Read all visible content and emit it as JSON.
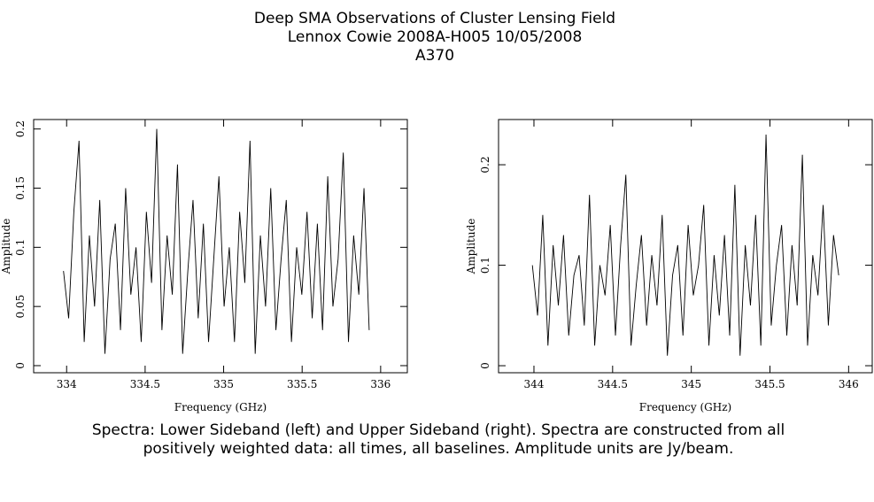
{
  "header": {
    "title": "Deep SMA Observations of Cluster Lensing Field",
    "line2": "Lennox Cowie   2008A-H005   10/05/2008",
    "line3": "A370"
  },
  "caption": {
    "line1": "Spectra: Lower Sideband (left) and Upper Sideband (right).  Spectra are constructed from all",
    "line2": "positively weighted data: all times, all baselines.  Amplitude units are Jy/beam."
  },
  "chart_data": [
    {
      "type": "line",
      "x_label": "Frequency (GHz)",
      "y_label": "Amplitude",
      "color": "#000000",
      "xlim": [
        333.79,
        336.17
      ],
      "ylim": [
        -0.006,
        0.208
      ],
      "xticks": [
        334,
        334.5,
        335,
        335.5,
        336
      ],
      "yticks": [
        0,
        0.05,
        0.1,
        0.15,
        0.2
      ],
      "x": [
        333.98,
        334.013,
        334.046,
        334.079,
        334.112,
        334.145,
        334.178,
        334.211,
        334.244,
        334.277,
        334.31,
        334.343,
        334.376,
        334.409,
        334.442,
        334.475,
        334.508,
        334.541,
        334.574,
        334.607,
        334.64,
        334.673,
        334.706,
        334.739,
        334.772,
        334.805,
        334.838,
        334.871,
        334.904,
        334.937,
        334.97,
        335.003,
        335.036,
        335.069,
        335.102,
        335.135,
        335.168,
        335.201,
        335.234,
        335.267,
        335.3,
        335.333,
        335.366,
        335.399,
        335.432,
        335.465,
        335.498,
        335.531,
        335.564,
        335.597,
        335.63,
        335.663,
        335.696,
        335.729,
        335.762,
        335.795,
        335.828,
        335.861,
        335.894,
        335.927
      ],
      "values": [
        0.08,
        0.04,
        0.13,
        0.19,
        0.02,
        0.11,
        0.05,
        0.14,
        0.01,
        0.09,
        0.12,
        0.03,
        0.15,
        0.06,
        0.1,
        0.02,
        0.13,
        0.07,
        0.2,
        0.03,
        0.11,
        0.06,
        0.17,
        0.01,
        0.08,
        0.14,
        0.04,
        0.12,
        0.02,
        0.09,
        0.16,
        0.05,
        0.1,
        0.02,
        0.13,
        0.07,
        0.19,
        0.01,
        0.11,
        0.05,
        0.15,
        0.03,
        0.09,
        0.14,
        0.02,
        0.1,
        0.06,
        0.13,
        0.04,
        0.12,
        0.03,
        0.16,
        0.05,
        0.09,
        0.18,
        0.02,
        0.11,
        0.06,
        0.15,
        0.03
      ]
    },
    {
      "type": "line",
      "x_label": "Frequency (GHz)",
      "y_label": "Amplitude",
      "color": "#000000",
      "xlim": [
        343.775,
        346.15
      ],
      "ylim": [
        -0.007,
        0.245
      ],
      "xticks": [
        344,
        344.5,
        345,
        345.5,
        346
      ],
      "yticks": [
        0,
        0.1,
        0.2
      ],
      "x": [
        343.99,
        344.023,
        344.056,
        344.089,
        344.122,
        344.155,
        344.188,
        344.221,
        344.254,
        344.287,
        344.32,
        344.353,
        344.386,
        344.419,
        344.452,
        344.485,
        344.518,
        344.551,
        344.584,
        344.617,
        344.65,
        344.683,
        344.716,
        344.749,
        344.782,
        344.815,
        344.848,
        344.881,
        344.914,
        344.947,
        344.98,
        345.013,
        345.046,
        345.079,
        345.112,
        345.145,
        345.178,
        345.211,
        345.244,
        345.277,
        345.31,
        345.343,
        345.376,
        345.409,
        345.442,
        345.475,
        345.508,
        345.541,
        345.574,
        345.607,
        345.64,
        345.673,
        345.706,
        345.739,
        345.772,
        345.805,
        345.838,
        345.871,
        345.904,
        345.937
      ],
      "values": [
        0.1,
        0.05,
        0.15,
        0.02,
        0.12,
        0.06,
        0.13,
        0.03,
        0.09,
        0.11,
        0.04,
        0.17,
        0.02,
        0.1,
        0.07,
        0.14,
        0.03,
        0.12,
        0.19,
        0.02,
        0.08,
        0.13,
        0.04,
        0.11,
        0.06,
        0.15,
        0.01,
        0.09,
        0.12,
        0.03,
        0.14,
        0.07,
        0.1,
        0.16,
        0.02,
        0.11,
        0.05,
        0.13,
        0.03,
        0.18,
        0.01,
        0.12,
        0.06,
        0.15,
        0.02,
        0.23,
        0.04,
        0.1,
        0.14,
        0.03,
        0.12,
        0.06,
        0.21,
        0.02,
        0.11,
        0.07,
        0.16,
        0.04,
        0.13,
        0.09
      ]
    }
  ]
}
